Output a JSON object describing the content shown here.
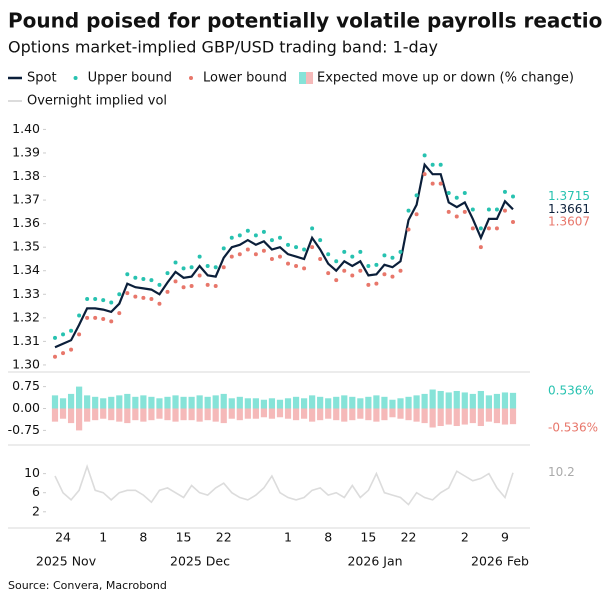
{
  "title": "Pound poised for potentially volatile payrolls reaction",
  "subtitle": "Options market-implied GBP/USD trading band: 1-day",
  "source": "Source: Convera, Macrobond",
  "categories": [
    null,
    "24",
    null,
    null,
    null,
    null,
    "1",
    null,
    null,
    null,
    null,
    "8",
    null,
    null,
    null,
    null,
    "15",
    null,
    null,
    null,
    null,
    "22",
    null,
    null,
    null,
    null,
    null,
    null,
    null,
    "1",
    null,
    null,
    null,
    null,
    "8",
    null,
    null,
    null,
    null,
    "15",
    null,
    null,
    null,
    null,
    "22",
    null,
    null,
    null,
    null,
    null,
    null,
    "2",
    null,
    null,
    null,
    null,
    "9",
    null
  ],
  "x_groups": [
    "2025 Nov",
    "2025 Dec",
    "2026 Jan",
    "2026 Feb"
  ],
  "chart_data": [
    {
      "type": "line",
      "ylim": [
        1.297,
        1.404
      ],
      "yticks": [
        {
          "value": 1.3,
          "label": "1.30"
        },
        {
          "value": 1.31,
          "label": "1.31"
        },
        {
          "value": 1.32,
          "label": "1.32"
        },
        {
          "value": 1.33,
          "label": "1.33"
        },
        {
          "value": 1.34,
          "label": "1.34"
        },
        {
          "value": 1.35,
          "label": "1.35"
        },
        {
          "value": 1.36,
          "label": "1.36"
        },
        {
          "value": 1.37,
          "label": "1.37"
        },
        {
          "value": 1.38,
          "label": "1.38"
        },
        {
          "value": 1.39,
          "label": "1.39"
        },
        {
          "value": 1.4,
          "label": "1.40"
        }
      ],
      "series": [
        {
          "name": "Spot",
          "color": "#0b1f3a",
          "marker": "line",
          "values": [
            1.3075,
            1.309,
            1.3105,
            1.317,
            1.324,
            1.324,
            1.3235,
            1.3225,
            1.326,
            1.3345,
            1.333,
            1.3325,
            1.332,
            1.33,
            1.335,
            1.3395,
            1.337,
            1.3375,
            1.342,
            1.338,
            1.3375,
            1.3455,
            1.35,
            1.351,
            1.353,
            1.351,
            1.3525,
            1.349,
            1.35,
            1.347,
            1.346,
            1.345,
            1.354,
            1.349,
            1.343,
            1.34,
            1.344,
            1.342,
            1.344,
            1.338,
            1.3385,
            1.3425,
            1.3415,
            1.344,
            1.3615,
            1.368,
            1.385,
            1.381,
            1.381,
            1.369,
            1.367,
            1.369,
            1.362,
            1.354,
            1.362,
            1.362,
            1.3695,
            1.3661
          ]
        },
        {
          "name": "Upper bound",
          "color": "#27c2b0",
          "marker": "dot",
          "values": [
            1.3115,
            1.313,
            1.3145,
            1.321,
            1.328,
            1.328,
            1.3275,
            1.3265,
            1.33,
            1.3385,
            1.337,
            1.3365,
            1.336,
            1.334,
            1.339,
            1.3435,
            1.341,
            1.3415,
            1.346,
            1.342,
            1.3415,
            1.3495,
            1.354,
            1.355,
            1.357,
            1.355,
            1.3565,
            1.353,
            1.354,
            1.351,
            1.35,
            1.349,
            1.358,
            1.353,
            1.347,
            1.344,
            1.348,
            1.346,
            1.348,
            1.342,
            1.3425,
            1.3465,
            1.3455,
            1.348,
            1.3655,
            1.372,
            1.389,
            1.385,
            1.385,
            1.373,
            1.371,
            1.373,
            1.366,
            1.358,
            1.366,
            1.366,
            1.3735,
            1.3715
          ]
        },
        {
          "name": "Lower bound",
          "color": "#e8776b",
          "marker": "dot",
          "values": [
            1.3035,
            1.305,
            1.3065,
            1.313,
            1.32,
            1.32,
            1.3195,
            1.3185,
            1.322,
            1.3305,
            1.329,
            1.3285,
            1.328,
            1.326,
            1.331,
            1.3355,
            1.333,
            1.3335,
            1.338,
            1.334,
            1.3335,
            1.3415,
            1.346,
            1.347,
            1.349,
            1.347,
            1.3485,
            1.345,
            1.346,
            1.343,
            1.342,
            1.341,
            1.35,
            1.345,
            1.339,
            1.336,
            1.34,
            1.338,
            1.34,
            1.334,
            1.3345,
            1.3385,
            1.3375,
            1.34,
            1.3575,
            1.364,
            1.381,
            1.377,
            1.377,
            1.365,
            1.363,
            1.365,
            1.358,
            1.35,
            1.358,
            1.358,
            1.3655,
            1.3607
          ]
        }
      ]
    },
    {
      "type": "bar",
      "name": "Expected move up or down (% change)",
      "ylim": [
        -1.25,
        1.25
      ],
      "yticks": [
        {
          "value": -0.75,
          "label": "-0.75"
        },
        {
          "value": 0,
          "label": "0.00"
        },
        {
          "value": 0.75,
          "label": "0.75"
        }
      ],
      "series": [
        {
          "color": "#86e3d8",
          "label_color": "#27c2b0",
          "values": [
            0.45,
            0.35,
            0.5,
            0.75,
            0.45,
            0.4,
            0.35,
            0.4,
            0.45,
            0.5,
            0.4,
            0.45,
            0.4,
            0.35,
            0.4,
            0.45,
            0.4,
            0.4,
            0.45,
            0.4,
            0.45,
            0.5,
            0.35,
            0.4,
            0.35,
            0.35,
            0.3,
            0.35,
            0.3,
            0.35,
            0.4,
            0.35,
            0.45,
            0.4,
            0.35,
            0.4,
            0.45,
            0.4,
            0.35,
            0.4,
            0.45,
            0.4,
            0.3,
            0.35,
            0.4,
            0.45,
            0.5,
            0.65,
            0.6,
            0.55,
            0.6,
            0.55,
            0.5,
            0.6,
            0.45,
            0.5,
            0.55,
            0.536
          ],
          "value_labels": [
            null,
            null,
            null,
            null,
            null,
            null,
            null,
            null,
            null,
            null,
            null,
            null,
            null,
            null,
            null,
            null,
            null,
            null,
            null,
            null,
            null,
            null,
            null,
            null,
            null,
            null,
            null,
            null,
            null,
            null,
            null,
            null,
            null,
            null,
            null,
            null,
            null,
            null,
            null,
            null,
            null,
            null,
            null,
            null,
            null,
            null,
            null,
            null,
            null,
            null,
            null,
            null,
            null,
            null,
            null,
            null,
            null,
            "0.536%"
          ]
        },
        {
          "color": "#f5b9b9",
          "label_color": "#e8776b",
          "values": [
            -0.45,
            -0.35,
            -0.5,
            -0.75,
            -0.45,
            -0.4,
            -0.35,
            -0.4,
            -0.45,
            -0.5,
            -0.4,
            -0.45,
            -0.4,
            -0.35,
            -0.4,
            -0.45,
            -0.4,
            -0.4,
            -0.45,
            -0.4,
            -0.45,
            -0.5,
            -0.35,
            -0.4,
            -0.35,
            -0.35,
            -0.3,
            -0.35,
            -0.3,
            -0.35,
            -0.4,
            -0.35,
            -0.45,
            -0.4,
            -0.35,
            -0.4,
            -0.45,
            -0.4,
            -0.35,
            -0.4,
            -0.45,
            -0.4,
            -0.3,
            -0.35,
            -0.4,
            -0.45,
            -0.5,
            -0.65,
            -0.6,
            -0.55,
            -0.6,
            -0.55,
            -0.5,
            -0.6,
            -0.45,
            -0.5,
            -0.55,
            -0.536
          ],
          "value_labels": [
            null,
            null,
            null,
            null,
            null,
            null,
            null,
            null,
            null,
            null,
            null,
            null,
            null,
            null,
            null,
            null,
            null,
            null,
            null,
            null,
            null,
            null,
            null,
            null,
            null,
            null,
            null,
            null,
            null,
            null,
            null,
            null,
            null,
            null,
            null,
            null,
            null,
            null,
            null,
            null,
            null,
            null,
            null,
            null,
            null,
            null,
            null,
            null,
            null,
            null,
            null,
            null,
            null,
            null,
            null,
            null,
            null,
            "-0.536%"
          ]
        }
      ]
    },
    {
      "type": "line",
      "ylim": [
        -1.4,
        16
      ],
      "yticks": [
        2,
        6,
        10
      ],
      "series": [
        {
          "name": "Overnight implied vol",
          "color": "#dcdcdc",
          "marker": "line",
          "label_color": "#aaaaaa",
          "values": [
            9.5,
            6,
            4.5,
            6.5,
            11.5,
            6.5,
            6,
            4.5,
            6,
            6.5,
            6.5,
            5.5,
            4,
            6.5,
            7,
            6,
            5,
            7.5,
            6,
            5.5,
            7,
            8,
            6,
            5,
            4.5,
            5.5,
            7,
            9.5,
            6,
            5,
            4.5,
            5,
            6.5,
            7,
            5.5,
            6,
            5,
            7.5,
            5,
            6.5,
            10,
            6,
            5.5,
            5,
            3.5,
            6,
            5,
            4.5,
            6,
            7,
            10.5,
            9.5,
            8.5,
            9,
            10,
            7,
            5,
            10.2
          ]
        }
      ]
    }
  ]
}
